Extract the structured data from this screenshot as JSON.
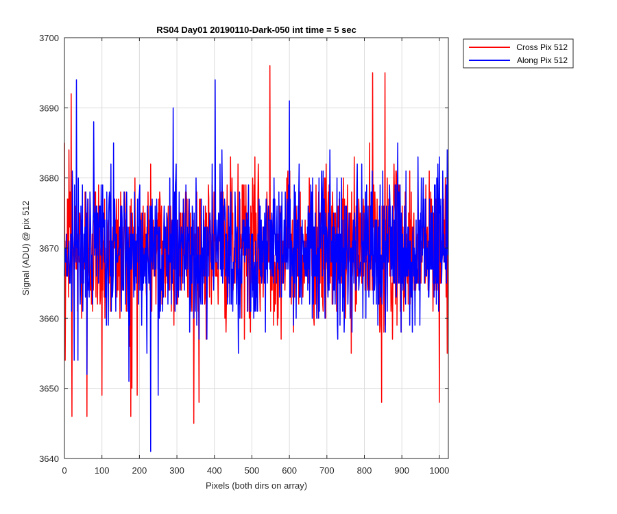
{
  "chart_data": {
    "type": "line",
    "title": "RS04 Day01 20190110-Dark-050 int time = 5 sec",
    "xlabel": "Pixels (both dirs on array)",
    "ylabel": "Signal (ADU) @ pix 512",
    "xlim": [
      0,
      1024
    ],
    "ylim": [
      3640,
      3700
    ],
    "xticks": [
      0,
      100,
      200,
      300,
      400,
      500,
      600,
      700,
      800,
      900,
      1000
    ],
    "yticks": [
      3640,
      3650,
      3660,
      3670,
      3680,
      3690,
      3700
    ],
    "grid": true,
    "legend_placement": "outside-top-right",
    "series": [
      {
        "name": "Cross Pix 512",
        "color": "#ff0000",
        "mean": 3670,
        "std": 5.3,
        "n_points": 1024,
        "samples": [
          {
            "x": 2,
            "y": 3654
          },
          {
            "x": 12,
            "y": 3684
          },
          {
            "x": 18,
            "y": 3692
          },
          {
            "x": 20,
            "y": 3646
          },
          {
            "x": 60,
            "y": 3646
          },
          {
            "x": 100,
            "y": 3649
          },
          {
            "x": 177,
            "y": 3646
          },
          {
            "x": 180,
            "y": 3650
          },
          {
            "x": 345,
            "y": 3645
          },
          {
            "x": 548,
            "y": 3696
          },
          {
            "x": 822,
            "y": 3695
          },
          {
            "x": 846,
            "y": 3648
          },
          {
            "x": 855,
            "y": 3695
          },
          {
            "x": 1000,
            "y": 3648
          }
        ]
      },
      {
        "name": "Along Pix 512",
        "color": "#0000ff",
        "mean": 3670,
        "std": 5.3,
        "n_points": 1024,
        "samples": [
          {
            "x": 32,
            "y": 3694
          },
          {
            "x": 60,
            "y": 3652
          },
          {
            "x": 230,
            "y": 3641
          },
          {
            "x": 250,
            "y": 3649
          },
          {
            "x": 290,
            "y": 3690
          },
          {
            "x": 402,
            "y": 3694
          },
          {
            "x": 600,
            "y": 3691
          },
          {
            "x": 1000,
            "y": 3683
          }
        ]
      }
    ]
  }
}
